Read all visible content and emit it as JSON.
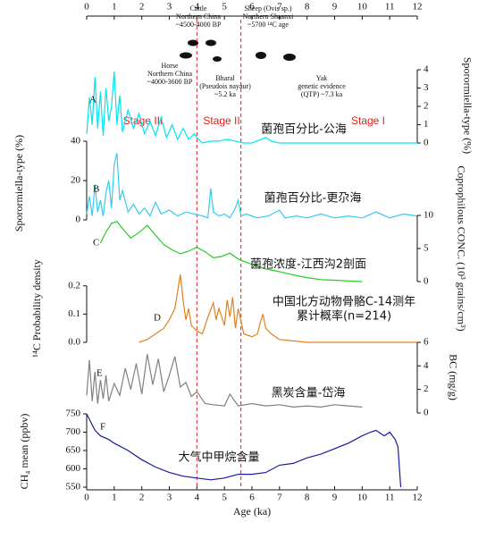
{
  "shared_x": {
    "label": "Age (ka)",
    "xlim": [
      0,
      12
    ],
    "xticks": [
      0,
      1,
      2,
      3,
      4,
      5,
      6,
      7,
      8,
      9,
      10,
      11,
      12
    ]
  },
  "stages": [
    "Stage III",
    "Stage II",
    "Stage I"
  ],
  "stage_boundaries": [
    4.0,
    5.6
  ],
  "animals": [
    [
      "Horse",
      "Northern China",
      "~4000-3600 BP"
    ],
    [
      "Cattle",
      "Northern China",
      "~4500-4000 BP"
    ],
    [
      "Bharal",
      "(Pseudois nayaur)",
      "~5.2 ka"
    ],
    [
      "Sheep (Ovis sp.)",
      "Northern Shaanxi",
      "~5700 ¹⁴C age"
    ],
    [
      "Yak",
      "genetic evidence",
      "(QTP) ~7.3 ka"
    ]
  ],
  "chart_data": [
    {
      "type": "line",
      "label": "A",
      "caption": [
        "菌孢百分比-公海"
      ],
      "ylabel": "Sporormiella-type (%)",
      "axis": "right",
      "ylim": [
        0,
        4
      ],
      "yticks": [
        0,
        1,
        2,
        3,
        4
      ],
      "series": [
        {
          "color": "#00e5ee",
          "x": [
            0,
            0.1,
            0.2,
            0.3,
            0.4,
            0.5,
            0.6,
            0.7,
            0.8,
            0.9,
            1.0,
            1.1,
            1.2,
            1.3,
            1.5,
            1.7,
            1.9,
            2.1,
            2.3,
            2.5,
            2.7,
            2.9,
            3.1,
            3.3,
            3.5,
            3.7,
            3.9,
            4.0,
            4.2,
            4.5,
            4.8,
            5.1,
            5.4,
            5.7,
            6.0,
            6.5,
            6.7,
            7,
            8,
            9,
            10,
            11,
            12
          ],
          "values": [
            0.5,
            2.5,
            1.0,
            3.6,
            0.8,
            2.8,
            0.4,
            3.0,
            1.2,
            2.0,
            3.9,
            1.0,
            2.6,
            0.6,
            1.8,
            0.8,
            1.6,
            0.5,
            1.2,
            0.4,
            1.4,
            0.3,
            1.0,
            0.2,
            0.8,
            0.2,
            0.5,
            0.3,
            0,
            0.1,
            0.1,
            0.2,
            0.1,
            0,
            0,
            0.3,
            0.1,
            0,
            0,
            0,
            0,
            0,
            0
          ]
        }
      ]
    },
    {
      "type": "line",
      "label": "B",
      "caption": [
        "菌孢百分比-更尕海"
      ],
      "ylabel": "Sporormiella-type (%)",
      "axis": "left",
      "ylim": [
        0,
        40
      ],
      "yticks": [
        0,
        20,
        40
      ],
      "series": [
        {
          "color": "#33ccee",
          "x": [
            0,
            0.1,
            0.2,
            0.3,
            0.4,
            0.5,
            0.6,
            0.7,
            0.8,
            0.9,
            1.0,
            1.1,
            1.2,
            1.3,
            1.5,
            1.7,
            1.9,
            2.1,
            2.3,
            2.5,
            2.7,
            3.0,
            3.3,
            3.6,
            3.9,
            4.2,
            4.4,
            4.5,
            4.6,
            4.8,
            5.0,
            5.2,
            5.4,
            5.5,
            5.6,
            5.8,
            6.2,
            6.6,
            7.0,
            7.2,
            7.6,
            8.0,
            8.5,
            9.0,
            9.5,
            10.0,
            10.5,
            11.0,
            11.5,
            12.0
          ],
          "values": [
            3,
            12,
            2,
            18,
            4,
            10,
            2,
            14,
            20,
            6,
            28,
            34,
            10,
            15,
            4,
            8,
            3,
            6,
            2,
            9,
            3,
            5,
            2,
            4,
            3,
            2,
            1,
            16,
            4,
            2,
            3,
            1,
            6,
            10,
            2,
            3,
            1,
            2,
            5,
            1,
            2,
            1,
            3,
            1,
            2,
            1,
            4,
            1,
            3,
            2
          ]
        }
      ]
    },
    {
      "type": "line",
      "label": "C",
      "caption": [
        "菌孢浓度-江西沟2剖面"
      ],
      "ylabel": "Coprophilous CONC. (10³ grains/cm³)",
      "axis": "right",
      "ylim": [
        0,
        10
      ],
      "yticks": [
        0,
        5,
        10
      ],
      "series": [
        {
          "color": "#22cc22",
          "x": [
            0.5,
            0.7,
            0.9,
            1.1,
            1.3,
            1.6,
            1.9,
            2.2,
            2.5,
            2.8,
            3.1,
            3.4,
            3.7,
            4.0,
            4.3,
            4.6,
            4.9,
            5.2,
            5.5,
            6.0,
            6.5,
            7.0,
            7.5,
            8.0,
            8.5,
            9.0,
            9.5,
            10.0
          ],
          "values": [
            5.8,
            7.5,
            8.8,
            9.1,
            8.0,
            6.6,
            7.4,
            8.5,
            7.0,
            5.6,
            4.8,
            4.2,
            4.6,
            5.2,
            4.5,
            3.6,
            3.8,
            4.3,
            3.4,
            2.6,
            1.9,
            1.5,
            1.0,
            0.6,
            0.3,
            0.2,
            0.1,
            0
          ]
        }
      ]
    },
    {
      "type": "line",
      "label": "D",
      "caption": [
        "中国北方动物骨骼C-14测年",
        "累计概率(n=214)"
      ],
      "ylabel": "¹⁴C Probability density",
      "axis": "left",
      "ylim": [
        0,
        0.25
      ],
      "yticks": [
        {
          "value": 0,
          "label": "0.0"
        },
        0.1,
        0.2
      ],
      "series": [
        {
          "color": "#e08020",
          "x": [
            1.9,
            2.2,
            2.5,
            2.8,
            3.0,
            3.2,
            3.3,
            3.4,
            3.5,
            3.6,
            3.7,
            3.8,
            4.0,
            4.2,
            4.4,
            4.6,
            4.7,
            4.8,
            5.0,
            5.1,
            5.2,
            5.3,
            5.4,
            5.5,
            5.7,
            6.0,
            6.2,
            6.3,
            6.4,
            6.5,
            6.7,
            7.0,
            7.5,
            8.0,
            9,
            10,
            11,
            12
          ],
          "values": [
            0,
            0.01,
            0.03,
            0.05,
            0.08,
            0.12,
            0.18,
            0.24,
            0.15,
            0.08,
            0.12,
            0.06,
            0.04,
            0.03,
            0.09,
            0.14,
            0.08,
            0.12,
            0.06,
            0.15,
            0.09,
            0.16,
            0.05,
            0.12,
            0.03,
            0.02,
            0.03,
            0.07,
            0.1,
            0.05,
            0.03,
            0.01,
            0.005,
            0,
            0,
            0,
            0,
            0
          ]
        }
      ]
    },
    {
      "type": "line",
      "label": "E",
      "caption": [
        "黑炭含量-岱海"
      ],
      "ylabel": "BC (mg/g)",
      "axis": "right",
      "ylim": [
        0,
        6
      ],
      "yticks": [
        0,
        2,
        4,
        6
      ],
      "series": [
        {
          "color": "#808080",
          "x": [
            0,
            0.1,
            0.2,
            0.3,
            0.4,
            0.5,
            0.6,
            0.7,
            0.8,
            1.0,
            1.2,
            1.4,
            1.6,
            1.8,
            2.0,
            2.2,
            2.4,
            2.6,
            2.8,
            3.0,
            3.2,
            3.4,
            3.6,
            3.8,
            4.0,
            4.3,
            4.6,
            5.0,
            5.2,
            5.5,
            6.0,
            6.5,
            7.0,
            7.5,
            8.0,
            8.5,
            9.0,
            9.5,
            10.0
          ],
          "values": [
            1.5,
            4.5,
            1.0,
            3.5,
            0.8,
            2.8,
            1.2,
            3.2,
            1.0,
            2.5,
            1.5,
            3.8,
            2.0,
            4.2,
            1.6,
            5.0,
            2.4,
            4.6,
            1.8,
            3.2,
            4.8,
            2.2,
            2.6,
            1.4,
            1.8,
            0.8,
            0.7,
            0.6,
            1.6,
            0.6,
            0.8,
            0.6,
            0.7,
            0.5,
            0.6,
            0.5,
            0.7,
            0.6,
            0.5
          ]
        }
      ]
    },
    {
      "type": "line",
      "label": "F",
      "caption": [
        "大气中甲烷含量"
      ],
      "ylabel": "CH₄ mean (ppbv)",
      "axis": "left",
      "ylim": [
        550,
        750
      ],
      "yticks": [
        550,
        600,
        650,
        700,
        750
      ],
      "series": [
        {
          "color": "#1a1aa0",
          "x": [
            0,
            0.1,
            0.3,
            0.5,
            0.8,
            1.0,
            1.5,
            2.0,
            2.5,
            3.0,
            3.5,
            4.0,
            4.5,
            5.0,
            5.5,
            6.0,
            6.5,
            7.0,
            7.5,
            8.0,
            8.5,
            9.0,
            9.5,
            10.0,
            10.3,
            10.5,
            10.8,
            11.0,
            11.2,
            11.3,
            11.4
          ],
          "values": [
            750,
            735,
            705,
            690,
            680,
            670,
            650,
            625,
            605,
            590,
            580,
            575,
            570,
            575,
            585,
            585,
            590,
            610,
            615,
            630,
            640,
            655,
            670,
            690,
            700,
            705,
            690,
            700,
            680,
            660,
            550
          ]
        }
      ]
    }
  ]
}
